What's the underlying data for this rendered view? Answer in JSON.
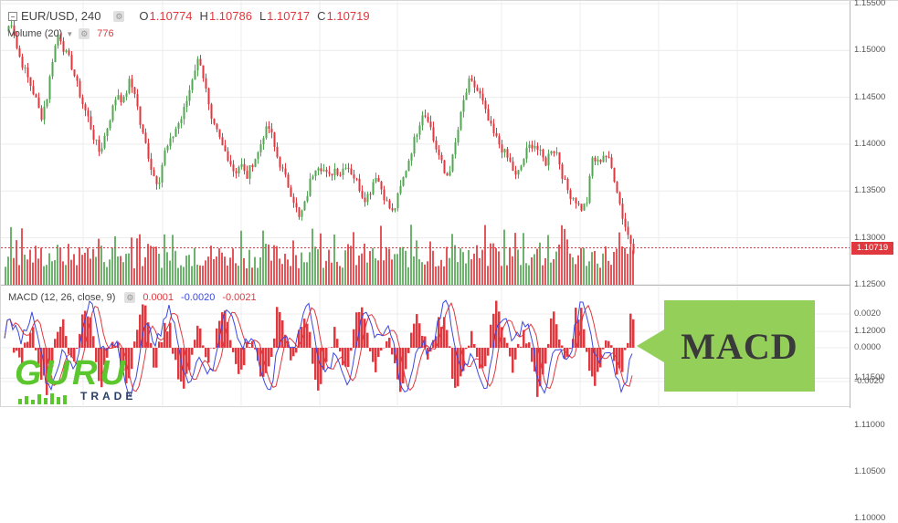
{
  "symbol": {
    "title": "EUR/USD, 240",
    "open_key": "O",
    "open": "1.10774",
    "high_key": "H",
    "high": "1.10786",
    "low_key": "L",
    "low": "1.10717",
    "close_key": "C",
    "close": "1.10719"
  },
  "volume": {
    "label": "Volume (20)",
    "value": "776"
  },
  "macd": {
    "label": "MACD (12, 26, close, 9)",
    "hist": "0.0001",
    "macd": "-0.0020",
    "signal": "-0.0021"
  },
  "price_axis": {
    "ticks": [
      "1.15500",
      "1.15000",
      "1.14500",
      "1.14000",
      "1.13500",
      "1.13000",
      "1.12500",
      "1.12000",
      "1.11500",
      "1.11000",
      "1.10500",
      "1.10000"
    ],
    "last_price": "1.10719"
  },
  "macd_axis": {
    "ticks": [
      "0.0020",
      "0.0000",
      "-0.0020"
    ]
  },
  "callout": {
    "text": "MACD"
  },
  "logo": {
    "guru": "GURU",
    "trade": "TRADE"
  },
  "colors": {
    "up": "#53a653",
    "down": "#e0383e",
    "macd_line": "#3b48e0",
    "signal_line": "#e0383e",
    "callout": "#94cf5a",
    "logo_green": "#5cc62e"
  },
  "chart_data": {
    "type": "line",
    "x": [],
    "series": [],
    "price_range": [
      1.1,
      1.156
    ],
    "price_path": [
      1.15,
      1.152,
      1.146,
      1.143,
      1.14,
      1.137,
      1.133,
      1.137,
      1.145,
      1.15,
      1.146,
      1.144,
      1.14,
      1.136,
      1.133,
      1.129,
      1.126,
      1.13,
      1.134,
      1.138,
      1.136,
      1.14,
      1.138,
      1.131,
      1.127,
      1.122,
      1.12,
      1.126,
      1.128,
      1.131,
      1.133,
      1.137,
      1.142,
      1.145,
      1.139,
      1.132,
      1.13,
      1.127,
      1.125,
      1.122,
      1.124,
      1.121,
      1.124,
      1.126,
      1.13,
      1.131,
      1.126,
      1.123,
      1.12,
      1.117,
      1.113,
      1.116,
      1.121,
      1.124,
      1.123,
      1.121,
      1.123,
      1.122,
      1.124,
      1.122,
      1.12,
      1.117,
      1.118,
      1.122,
      1.119,
      1.116,
      1.114,
      1.118,
      1.122,
      1.126,
      1.13,
      1.134,
      1.133,
      1.128,
      1.125,
      1.121,
      1.124,
      1.13,
      1.136,
      1.14,
      1.139,
      1.137,
      1.133,
      1.13,
      1.128,
      1.126,
      1.124,
      1.121,
      1.124,
      1.127,
      1.128,
      1.126,
      1.124,
      1.127,
      1.126,
      1.121,
      1.118,
      1.117,
      1.115,
      1.116,
      1.125,
      1.124,
      1.126,
      1.124,
      1.12,
      1.114,
      1.11,
      1.107
    ]
  }
}
